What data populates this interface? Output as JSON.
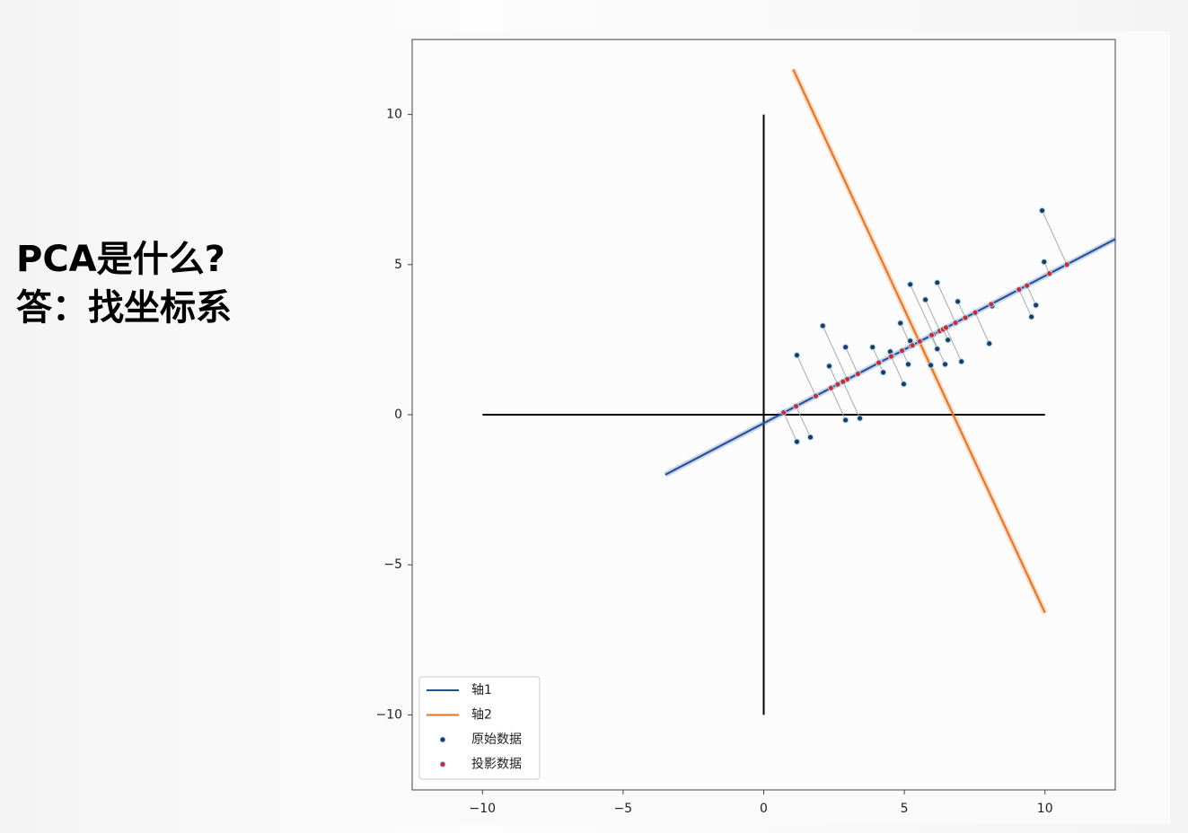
{
  "slide": {
    "lines": [
      "PCA是什么?",
      "答：找坐标系"
    ]
  },
  "chart_data": {
    "type": "scatter",
    "xlim": [
      -12.5,
      12.5
    ],
    "ylim": [
      -12.5,
      12.5
    ],
    "xticks": [
      {
        "value": -10,
        "label": "−10"
      },
      {
        "value": -5,
        "label": "−5"
      },
      0,
      5,
      10
    ],
    "yticks": [
      {
        "value": -10,
        "label": "−10"
      },
      {
        "value": -5,
        "label": "−5"
      },
      0,
      5,
      10
    ],
    "origin_axes": {
      "x": [
        -10,
        10
      ],
      "y": [
        -10,
        10
      ],
      "color": "#000000"
    },
    "projection_lines": true,
    "legend": "lower left",
    "series": [
      {
        "name": "轴1",
        "type": "line",
        "color": "#1f4e9a",
        "x": [
          -3.5,
          12.5
        ],
        "y": [
          -2,
          5.85
        ]
      },
      {
        "name": "轴2",
        "type": "line",
        "color": "#e8711a",
        "x": [
          1.05,
          10
        ],
        "y": [
          11.5,
          -6.6
        ]
      },
      {
        "name": "原始数据",
        "type": "scatter",
        "color": "#1f3a5f",
        "x": [
          1.18,
          2.1,
          2.33,
          2.91,
          2.91,
          3.42,
          1.18,
          1.66,
          3.87,
          4.25,
          4.5,
          4.98,
          4.86,
          5.21,
          5.14,
          5.21,
          5.75,
          5.94,
          6.17,
          6.17,
          6.45,
          6.55,
          6.9,
          7.03,
          8.02,
          8.12,
          9.07,
          9.52,
          9.68,
          9.9,
          9.97
        ],
        "y": [
          1.98,
          2.96,
          1.62,
          2.25,
          -0.18,
          -0.12,
          -0.9,
          -0.75,
          2.25,
          1.41,
          2.1,
          1.02,
          3.05,
          4.34,
          1.68,
          2.46,
          3.83,
          1.65,
          4.4,
          2.19,
          1.68,
          2.49,
          3.77,
          1.77,
          2.37,
          3.62,
          4.16,
          3.26,
          3.65,
          6.8,
          5.09
        ]
      },
      {
        "name": "投影数据",
        "type": "scatter",
        "color": "#d62728",
        "x": [
          1.85,
          2.97,
          2.63,
          3.35,
          2.39,
          2.82,
          0.71,
          1.15,
          4.12,
          4.09,
          4.57,
          4.53,
          5.24,
          6.03,
          4.92,
          5.29,
          6.26,
          5.55,
          6.82,
          5.95,
          5.97,
          6.38,
          7.17,
          6.48,
          7.52,
          8.09,
          9.07,
          9.08,
          9.36,
          10.78,
          10.16
        ],
        "y": [
          0.62,
          1.18,
          1.01,
          1.36,
          0.89,
          1.1,
          0.07,
          0.28,
          1.74,
          1.73,
          1.96,
          1.94,
          2.29,
          2.67,
          2.13,
          2.31,
          2.79,
          2.44,
          3.06,
          2.64,
          2.65,
          2.84,
          3.23,
          2.9,
          3.4,
          3.68,
          4.16,
          4.17,
          4.3,
          5.0,
          4.7
        ]
      }
    ]
  }
}
